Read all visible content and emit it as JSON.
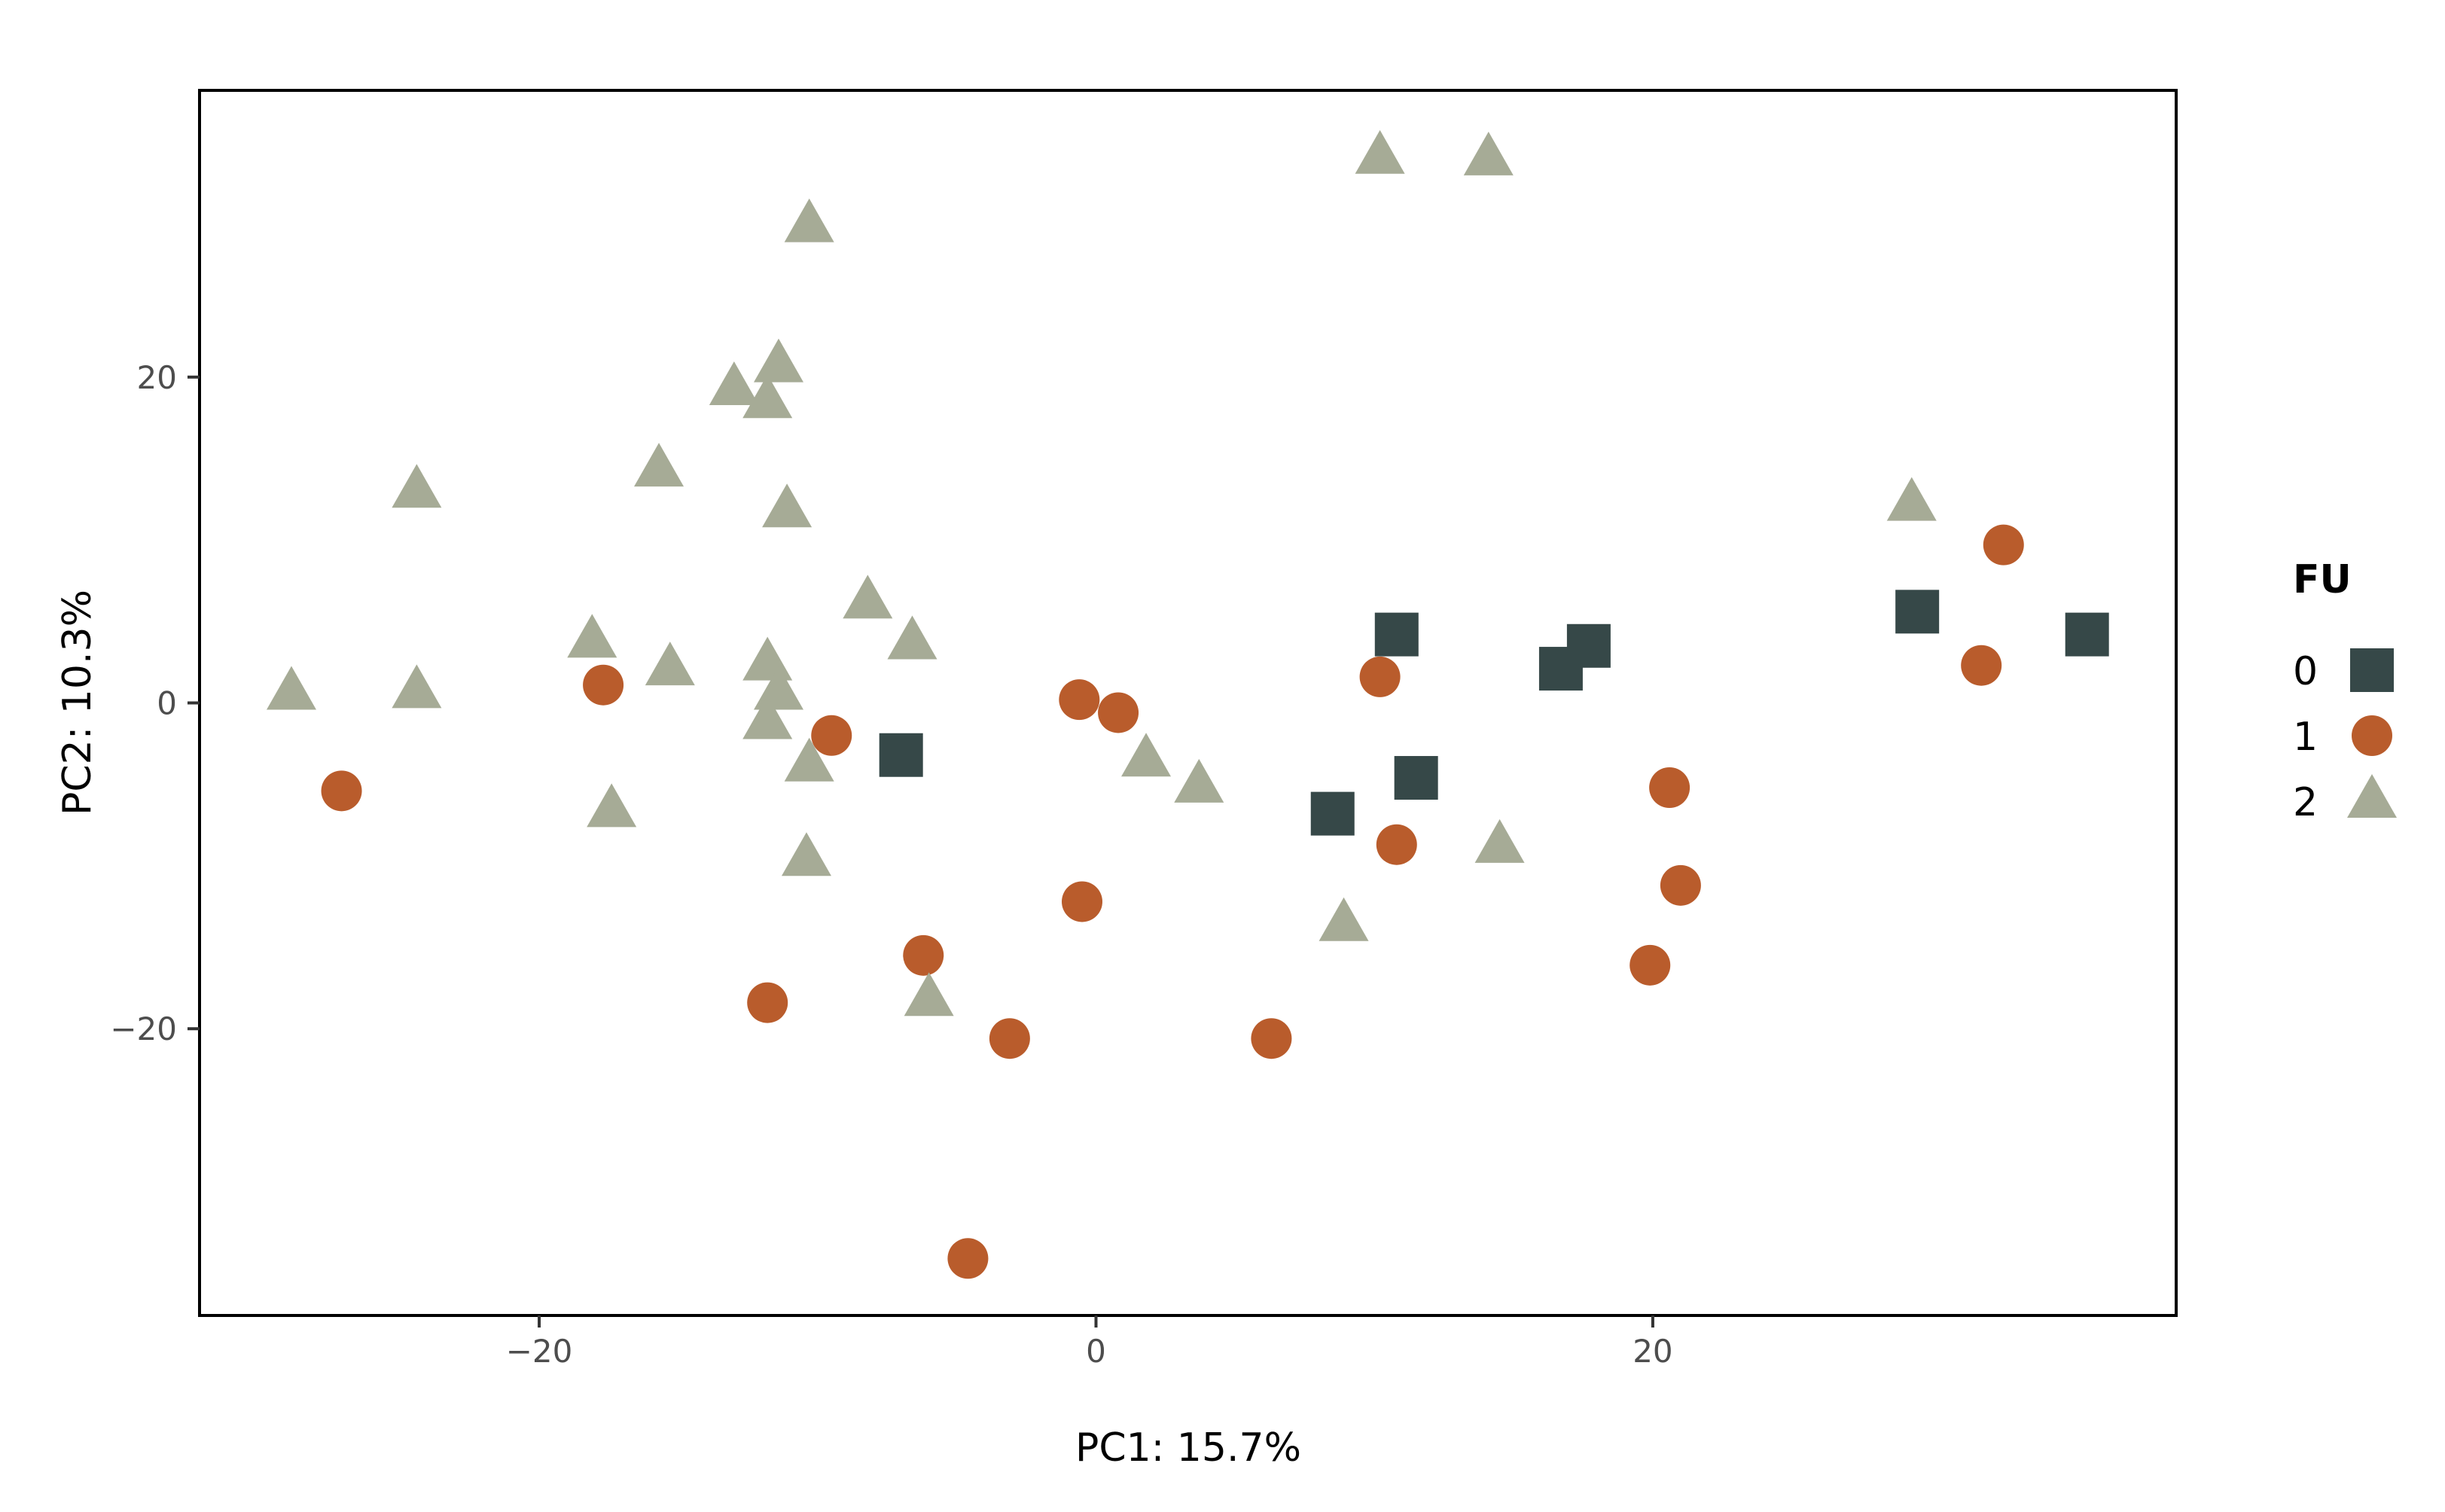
{
  "chart_data": {
    "type": "scatter",
    "title": "",
    "xlabel": "PC1: 15.7%",
    "ylabel": "PC2: 10.3%",
    "xlim": [
      -32.2,
      38.8
    ],
    "ylim": [
      -37.6,
      37.6
    ],
    "xticks": [
      -20,
      0,
      20
    ],
    "yticks": [
      -20,
      0,
      20
    ],
    "xtick_labels": [
      "−20",
      "0",
      "20"
    ],
    "ytick_labels": [
      "−20",
      "0",
      "20"
    ],
    "grid": false,
    "legend": {
      "title": "FU",
      "placement": "right"
    },
    "series": [
      {
        "name": "0",
        "marker": "square",
        "color": "#364848",
        "points": [
          [
            -7.0,
            -3.2
          ],
          [
            8.5,
            -6.8
          ],
          [
            10.8,
            4.2
          ],
          [
            11.5,
            -4.6
          ],
          [
            16.7,
            2.1
          ],
          [
            17.7,
            3.5
          ],
          [
            29.5,
            5.6
          ],
          [
            35.6,
            4.2
          ]
        ]
      },
      {
        "name": "1",
        "marker": "circle",
        "color": "#b95c2c",
        "points": [
          [
            -27.1,
            -5.4
          ],
          [
            -17.7,
            1.1
          ],
          [
            -11.8,
            -18.4
          ],
          [
            -9.5,
            -2.0
          ],
          [
            -6.2,
            -15.5
          ],
          [
            -4.6,
            -34.1
          ],
          [
            -3.1,
            -20.6
          ],
          [
            -0.6,
            0.2
          ],
          [
            -0.5,
            -12.2
          ],
          [
            0.8,
            -0.6
          ],
          [
            6.3,
            -20.6
          ],
          [
            10.2,
            1.6
          ],
          [
            10.8,
            -8.7
          ],
          [
            19.9,
            -16.1
          ],
          [
            20.6,
            -5.2
          ],
          [
            21.0,
            -11.2
          ],
          [
            31.8,
            2.3
          ],
          [
            32.6,
            9.7
          ]
        ]
      },
      {
        "name": "2",
        "marker": "triangle",
        "color": "#a6ab96",
        "points": [
          [
            -28.9,
            0.6
          ],
          [
            -24.4,
            0.7
          ],
          [
            -24.4,
            13.0
          ],
          [
            -18.1,
            3.8
          ],
          [
            -17.4,
            -6.6
          ],
          [
            -15.7,
            14.3
          ],
          [
            -15.3,
            2.1
          ],
          [
            -13.0,
            19.3
          ],
          [
            -11.8,
            18.5
          ],
          [
            -11.4,
            20.7
          ],
          [
            -11.8,
            2.4
          ],
          [
            -11.4,
            0.6
          ],
          [
            -11.8,
            -1.2
          ],
          [
            -11.1,
            11.8
          ],
          [
            -10.3,
            29.3
          ],
          [
            -10.3,
            -3.8
          ],
          [
            -10.4,
            -9.6
          ],
          [
            -8.2,
            6.2
          ],
          [
            -6.6,
            3.7
          ],
          [
            -6.0,
            -18.2
          ],
          [
            1.8,
            -3.5
          ],
          [
            3.7,
            -5.1
          ],
          [
            8.9,
            -13.6
          ],
          [
            10.2,
            33.5
          ],
          [
            14.1,
            33.4
          ],
          [
            14.5,
            -8.8
          ],
          [
            29.3,
            12.2
          ]
        ]
      }
    ]
  }
}
